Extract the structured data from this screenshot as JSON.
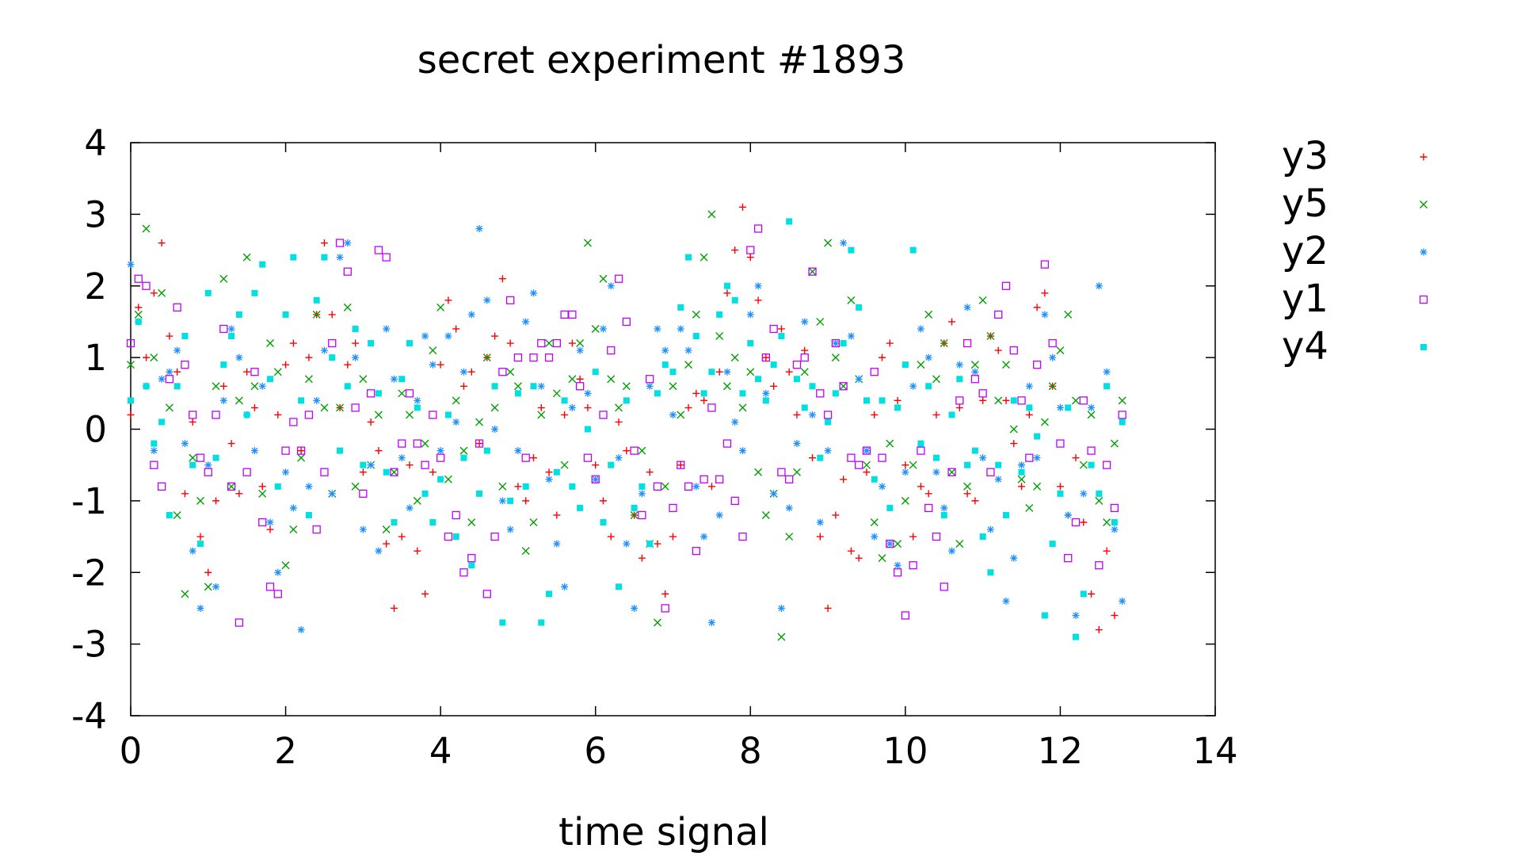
{
  "chart_data": {
    "type": "scatter",
    "title": "secret experiment #1893",
    "xlabel": "time signal",
    "ylabel": "",
    "xlim": [
      0,
      14
    ],
    "ylim": [
      -4,
      4
    ],
    "x_ticks": [
      "0",
      "2",
      "4",
      "6",
      "8",
      "10",
      "12",
      "14"
    ],
    "y_ticks": [
      "4",
      "3",
      "2",
      "1",
      "0",
      "-1",
      "-2",
      "-3",
      "-4"
    ],
    "grid": false,
    "legend_position": "outside-right",
    "x_step": 0.1,
    "series": [
      {
        "name": "y3",
        "color": "#ff0000",
        "marker": "plus",
        "values": [
          0.2,
          1.7,
          1.0,
          1.9,
          2.6,
          1.3,
          0.8,
          -0.9,
          0.1,
          -1.5,
          -2.0,
          -1.0,
          0.6,
          -0.2,
          -0.9,
          0.8,
          0.3,
          -0.8,
          -1.4,
          0.2,
          0.9,
          1.2,
          -0.3,
          1.0,
          1.6,
          2.6,
          1.6,
          0.3,
          0.9,
          1.2,
          -0.6,
          0.1,
          -0.3,
          -1.6,
          -2.5,
          -1.5,
          -0.5,
          -1.7,
          -2.3,
          -0.6,
          0.9,
          1.8,
          1.4,
          0.6,
          0.8,
          -0.2,
          1.0,
          1.3,
          2.1,
          1.2,
          -0.8,
          -1.0,
          -0.4,
          0.3,
          -0.6,
          -1.2,
          0.2,
          1.2,
          0.7,
          0.3,
          -0.5,
          -1.0,
          -1.5,
          0.1,
          -0.3,
          -1.2,
          -1.8,
          -0.6,
          -1.6,
          -2.3,
          -1.5,
          -0.5,
          0.3,
          0.5,
          0.4,
          -0.8,
          0.8,
          1.9,
          2.5,
          3.1,
          2.4,
          1.8,
          1.0,
          0.6,
          1.4,
          0.8,
          0.2,
          1.1,
          -0.4,
          -1.5,
          -2.5,
          -1.2,
          -0.7,
          -1.7,
          -1.8,
          -0.6,
          0.2,
          1.0,
          1.2,
          0.4,
          -0.5,
          -1.5,
          -0.8,
          -0.9,
          0.2,
          1.2,
          1.5,
          0.3,
          -0.9,
          -1.0,
          0.4,
          1.3,
          1.1,
          0.4,
          -0.2,
          -0.8,
          0.2,
          1.7,
          1.9,
          0.6,
          -0.8,
          -1.2,
          -0.4,
          -1.3,
          -2.3,
          -2.8,
          -1.7,
          -2.6
        ]
      },
      {
        "name": "y5",
        "color": "#00a000",
        "marker": "cross",
        "values": [
          0.9,
          1.6,
          2.8,
          1.0,
          1.9,
          0.3,
          -1.2,
          -2.3,
          -0.4,
          -1.0,
          -2.2,
          0.6,
          2.1,
          -0.8,
          0.4,
          2.4,
          0.6,
          -0.9,
          1.2,
          0.8,
          -1.9,
          -1.4,
          -0.4,
          0.7,
          1.6,
          0.3,
          -0.9,
          0.3,
          1.7,
          -0.8,
          0.7,
          -0.5,
          0.2,
          -1.4,
          -0.6,
          0.5,
          0.2,
          -1.0,
          -0.2,
          1.1,
          1.7,
          -0.7,
          0.4,
          -0.3,
          -1.3,
          0.1,
          1.0,
          0.3,
          -0.8,
          0.8,
          0.6,
          -1.7,
          -1.3,
          0.2,
          1.2,
          0.5,
          -0.5,
          0.7,
          1.2,
          2.6,
          1.4,
          2.1,
          0.7,
          0.3,
          0.6,
          -1.2,
          -0.3,
          -1.6,
          -2.7,
          -0.8,
          0.6,
          0.2,
          0.9,
          1.6,
          2.4,
          3.0,
          1.3,
          0.6,
          1.0,
          0.3,
          0.8,
          -0.6,
          -1.2,
          -0.9,
          -2.9,
          -1.5,
          -0.6,
          0.8,
          2.2,
          1.5,
          2.6,
          1.0,
          0.6,
          1.8,
          0.7,
          -0.5,
          -1.3,
          -1.8,
          -0.2,
          -1.6,
          -1.0,
          -0.5,
          0.9,
          1.6,
          0.7,
          1.2,
          -0.6,
          -1.6,
          -0.8,
          0.9,
          1.8,
          1.3,
          0.4,
          0.9,
          0.0,
          -0.7,
          -1.1,
          -0.8,
          0.1,
          0.6,
          1.1,
          1.6,
          0.4,
          -0.5,
          0.2,
          -1.0,
          -1.3,
          -0.2,
          0.4
        ]
      },
      {
        "name": "y2",
        "color": "#1e90ff",
        "marker": "star",
        "values": [
          2.3,
          1.5,
          0.6,
          -0.3,
          0.7,
          0.8,
          1.1,
          -0.2,
          -1.7,
          -2.5,
          -0.5,
          -2.2,
          0.4,
          1.4,
          1.0,
          0.2,
          -0.3,
          0.6,
          -1.3,
          -2.0,
          -0.6,
          -1.1,
          -2.8,
          -0.8,
          0.4,
          1.1,
          -0.9,
          2.4,
          2.6,
          1.0,
          -1.4,
          -0.5,
          -1.7,
          1.4,
          0.7,
          -0.4,
          -1.1,
          0.4,
          1.3,
          0.9,
          -0.3,
          1.3,
          0.1,
          0.8,
          1.6,
          2.8,
          1.8,
          0.0,
          -1.0,
          -1.4,
          -0.3,
          1.5,
          1.9,
          0.6,
          -0.7,
          -1.6,
          -2.2,
          0.3,
          1.1,
          0.5,
          -0.7,
          1.4,
          2.0,
          -0.4,
          -1.6,
          -2.5,
          -0.9,
          0.6,
          1.4,
          1.1,
          0.2,
          1.4,
          1.1,
          -0.8,
          -1.5,
          -2.7,
          -1.2,
          0.8,
          0.1,
          -0.3,
          1.6,
          2.0,
          0.5,
          -0.9,
          -2.5,
          -1.1,
          -0.2,
          1.5,
          0.2,
          -1.3,
          -0.3,
          1.2,
          2.6,
          1.3,
          0.7,
          -0.3,
          -1.5,
          -0.8,
          -1.6,
          -1.9,
          -0.6,
          0.6,
          1.4,
          1.0,
          -0.6,
          -1.1,
          -1.7,
          0.9,
          1.7,
          0.8,
          -0.4,
          -1.4,
          -0.7,
          -2.4,
          -1.8,
          -0.5,
          0.6,
          -0.4,
          1.6,
          1.0,
          0.3,
          -1.2,
          -2.6,
          -0.9,
          0.3,
          2.0,
          0.8,
          -1.4,
          -2.4
        ]
      },
      {
        "name": "y1",
        "color": "#c000ff",
        "marker": "square",
        "values": [
          1.2,
          2.1,
          2.0,
          -0.5,
          -0.8,
          0.7,
          1.7,
          0.9,
          0.2,
          -0.4,
          -0.6,
          0.2,
          1.4,
          -0.8,
          -2.7,
          -0.6,
          0.8,
          -1.3,
          -2.2,
          -2.3,
          -0.3,
          0.1,
          -0.3,
          0.2,
          -1.4,
          -0.6,
          1.2,
          2.6,
          2.2,
          0.3,
          -0.9,
          0.5,
          2.5,
          2.4,
          -0.6,
          -0.2,
          0.5,
          -0.2,
          -0.5,
          0.2,
          -0.4,
          -1.5,
          -1.2,
          -2.0,
          -1.8,
          -0.2,
          -2.3,
          -1.5,
          0.8,
          1.8,
          1.0,
          -0.4,
          1.0,
          1.2,
          1.0,
          1.2,
          1.6,
          1.6,
          0.6,
          -0.4,
          -0.7,
          0.2,
          1.1,
          2.1,
          1.5,
          -0.3,
          -1.2,
          0.7,
          -0.8,
          -2.5,
          -1.1,
          -0.5,
          -0.8,
          -1.7,
          -0.7,
          0.3,
          -0.7,
          -0.2,
          -1.0,
          -1.5,
          2.5,
          2.8,
          1.0,
          1.4,
          -0.6,
          -0.7,
          0.9,
          1.0,
          2.2,
          0.5,
          0.2,
          1.2,
          0.6,
          -0.4,
          -0.5,
          -0.3,
          0.8,
          -0.4,
          -1.6,
          -2.0,
          -2.6,
          -1.9,
          -0.3,
          -1.1,
          -1.5,
          -2.2,
          -0.6,
          0.4,
          1.2,
          0.7,
          0.5,
          -0.6,
          1.6,
          2.0,
          1.1,
          0.4,
          -0.4,
          0.9,
          2.3,
          1.2,
          -0.2,
          -1.8,
          -1.3,
          0.4,
          -0.3,
          -1.9,
          -0.5,
          -1.1,
          0.2
        ]
      },
      {
        "name": "y4",
        "color": "#00e0e0",
        "marker": "filled-square",
        "values": [
          0.4,
          1.5,
          0.6,
          -0.2,
          0.1,
          -1.2,
          0.6,
          1.3,
          -0.5,
          -1.6,
          1.9,
          -0.4,
          0.9,
          1.3,
          1.6,
          0.2,
          1.9,
          2.3,
          0.7,
          -0.8,
          1.6,
          2.4,
          0.4,
          -1.2,
          1.8,
          2.4,
          1.0,
          -0.3,
          0.6,
          1.4,
          -0.5,
          1.2,
          0.5,
          -0.6,
          -1.3,
          0.7,
          1.2,
          0.3,
          -0.9,
          -1.3,
          -0.7,
          0.2,
          -1.5,
          -0.4,
          -1.9,
          -0.9,
          -0.3,
          0.6,
          -2.7,
          -1.0,
          0.5,
          -0.8,
          0.6,
          -2.7,
          -2.3,
          -0.6,
          0.4,
          -0.8,
          -1.1,
          0.0,
          0.8,
          -1.3,
          -0.5,
          -2.2,
          0.4,
          -1.1,
          -0.8,
          -1.6,
          0.5,
          0.9,
          0.8,
          1.7,
          2.4,
          1.3,
          0.5,
          0.8,
          1.6,
          2.0,
          1.8,
          0.5,
          1.2,
          0.7,
          0.4,
          0.9,
          1.3,
          2.9,
          0.7,
          0.3,
          0.6,
          -0.4,
          0.1,
          0.5,
          1.2,
          2.5,
          1.7,
          0.4,
          -0.7,
          0.4,
          -1.1,
          0.3,
          0.9,
          2.5,
          -0.2,
          0.6,
          -0.4,
          -1.2,
          0.2,
          0.7,
          -0.5,
          -0.3,
          -1.5,
          -2.0,
          -0.5,
          -1.2,
          0.4,
          -0.6,
          0.3,
          -0.1,
          -2.6,
          -1.6,
          -0.9,
          0.3,
          -2.9,
          -2.3,
          -0.5,
          -0.9,
          0.6,
          -1.3,
          0.1
        ]
      }
    ]
  }
}
